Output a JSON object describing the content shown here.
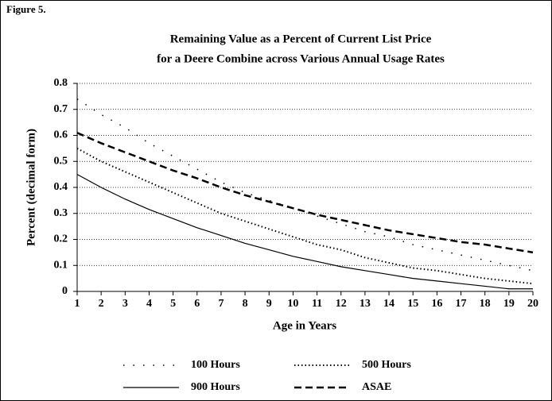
{
  "figure_label": "Figure 5.",
  "chart_data": {
    "type": "line",
    "title": [
      "Remaining Value as a Percent of Current List Price",
      "for a Deere Combine across Various Annual Usage Rates"
    ],
    "x_label": "Age in Years",
    "y_label": "Percent (decimal form)",
    "x": [
      1,
      2,
      3,
      4,
      5,
      6,
      7,
      8,
      9,
      10,
      11,
      12,
      13,
      14,
      15,
      16,
      17,
      18,
      19,
      20
    ],
    "xlim": [
      1,
      20
    ],
    "xticks": [
      1,
      2,
      3,
      4,
      5,
      6,
      7,
      8,
      9,
      10,
      11,
      12,
      13,
      14,
      15,
      16,
      17,
      18,
      19,
      20
    ],
    "ylim": [
      0,
      0.8
    ],
    "yticks": [
      0,
      0.1,
      0.2,
      0.3,
      0.4,
      0.5,
      0.6,
      0.7,
      0.8
    ],
    "grid": true,
    "series": [
      {
        "name": "100 Hours",
        "color": "#000000",
        "line_style": "sparse-dotted",
        "values": [
          0.74,
          0.68,
          0.63,
          0.57,
          0.52,
          0.47,
          0.42,
          0.38,
          0.35,
          0.32,
          0.29,
          0.26,
          0.23,
          0.21,
          0.18,
          0.16,
          0.14,
          0.12,
          0.1,
          0.08
        ]
      },
      {
        "name": "500 Hours",
        "color": "#000000",
        "line_style": "dotted",
        "values": [
          0.55,
          0.5,
          0.46,
          0.42,
          0.38,
          0.34,
          0.3,
          0.27,
          0.24,
          0.21,
          0.18,
          0.16,
          0.13,
          0.11,
          0.09,
          0.08,
          0.065,
          0.05,
          0.04,
          0.03
        ]
      },
      {
        "name": "900 Hours",
        "color": "#000000",
        "line_style": "solid",
        "values": [
          0.45,
          0.4,
          0.355,
          0.315,
          0.28,
          0.245,
          0.215,
          0.185,
          0.16,
          0.135,
          0.115,
          0.095,
          0.08,
          0.065,
          0.05,
          0.04,
          0.03,
          0.02,
          0.01,
          0.01
        ]
      },
      {
        "name": "ASAE",
        "color": "#000000",
        "line_style": "dashed",
        "values": [
          0.61,
          0.57,
          0.535,
          0.5,
          0.465,
          0.435,
          0.4,
          0.37,
          0.345,
          0.32,
          0.295,
          0.275,
          0.255,
          0.235,
          0.22,
          0.205,
          0.19,
          0.18,
          0.165,
          0.15
        ]
      }
    ]
  }
}
